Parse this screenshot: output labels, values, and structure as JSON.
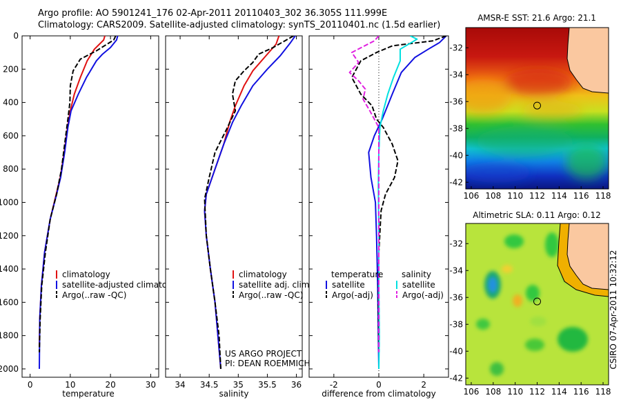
{
  "header": {
    "line1": "Argo profile: AO 5901241_176 02-Apr-2011 20110403_302 36.305S 111.999E",
    "line2": "Climatology: CARS2009. Satellite-adjusted climatology: synTS_20110401.nc (1.5d earlier)"
  },
  "chart_data": [
    {
      "type": "line",
      "panel": "temperature-profile",
      "xlabel": "temperature",
      "ylabel": "",
      "xlim": [
        -2,
        32
      ],
      "ylim": [
        2050,
        0
      ],
      "xticks": [
        "0",
        "10",
        "20",
        "30"
      ],
      "yticks": [
        "0",
        "200",
        "400",
        "600",
        "800",
        "1000",
        "1200",
        "1400",
        "1600",
        "1800",
        "2000"
      ],
      "legend_placement": "lower-right",
      "legend": [
        "climatology",
        "satellite-adjusted climatology",
        "Argo(..raw -QC)"
      ],
      "series": [
        {
          "name": "climatology",
          "color": "#e01010",
          "dash": "solid",
          "points": [
            [
              18.6,
              0
            ],
            [
              18.3,
              25
            ],
            [
              16,
              80
            ],
            [
              14.2,
              150
            ],
            [
              12.5,
              250
            ],
            [
              11,
              350
            ],
            [
              10,
              450
            ],
            [
              9.3,
              550
            ],
            [
              8.5,
              700
            ],
            [
              7.5,
              850
            ],
            [
              6.5,
              950
            ],
            [
              5,
              1100
            ],
            [
              3.6,
              1300
            ],
            [
              2.8,
              1500
            ],
            [
              2.4,
              1700
            ],
            [
              2.3,
              1870
            ]
          ]
        },
        {
          "name": "satellite-adjusted climatology",
          "color": "#1010e0",
          "dash": "solid",
          "points": [
            [
              21.8,
              0
            ],
            [
              21.5,
              25
            ],
            [
              20,
              70
            ],
            [
              18,
              110
            ],
            [
              16.5,
              150
            ],
            [
              14,
              250
            ],
            [
              12,
              350
            ],
            [
              10.2,
              450
            ],
            [
              9.4,
              550
            ],
            [
              8.6,
              700
            ],
            [
              7.6,
              850
            ],
            [
              6.6,
              950
            ],
            [
              5,
              1100
            ],
            [
              3.6,
              1300
            ],
            [
              2.8,
              1500
            ],
            [
              2.4,
              1700
            ],
            [
              2.3,
              2000
            ]
          ]
        },
        {
          "name": "Argo(..raw -QC)",
          "color": "#000000",
          "dash": "dashed",
          "points": [
            [
              21.3,
              0
            ],
            [
              20.8,
              25
            ],
            [
              16.5,
              90
            ],
            [
              12.5,
              140
            ],
            [
              10.7,
              210
            ],
            [
              10,
              300
            ],
            [
              9.9,
              400
            ],
            [
              9.4,
              500
            ],
            [
              8.6,
              650
            ],
            [
              7.8,
              800
            ],
            [
              6.6,
              950
            ],
            [
              5,
              1100
            ],
            [
              3.8,
              1300
            ],
            [
              2.9,
              1500
            ],
            [
              2.5,
              1700
            ],
            [
              2.3,
              1900
            ]
          ]
        }
      ]
    },
    {
      "type": "line",
      "panel": "salinity-profile",
      "xlabel": "salinity",
      "ylabel": "",
      "xlim": [
        33.75,
        36.1
      ],
      "ylim": [
        2050,
        0
      ],
      "xticks": [
        "34",
        "34.5",
        "35",
        "35.5",
        "36"
      ],
      "legend_placement": "lower-right",
      "legend": [
        "climatology",
        "satellite adj. clim.",
        "Argo(..raw -QC)"
      ],
      "annotation": [
        "US ARGO PROJECT",
        "PI: DEAN ROEMMICH"
      ],
      "series": [
        {
          "name": "climatology",
          "color": "#e01010",
          "dash": "solid",
          "points": [
            [
              35.7,
              0
            ],
            [
              35.65,
              50
            ],
            [
              35.45,
              130
            ],
            [
              35.25,
              210
            ],
            [
              35.1,
              300
            ],
            [
              34.95,
              420
            ],
            [
              34.85,
              520
            ],
            [
              34.75,
              650
            ],
            [
              34.6,
              800
            ],
            [
              34.45,
              950
            ],
            [
              34.42,
              1050
            ],
            [
              34.45,
              1200
            ],
            [
              34.52,
              1400
            ],
            [
              34.6,
              1600
            ],
            [
              34.65,
              1800
            ],
            [
              34.7,
              2000
            ]
          ]
        },
        {
          "name": "satellite adj. clim.",
          "color": "#1010e0",
          "dash": "solid",
          "points": [
            [
              35.98,
              0
            ],
            [
              35.9,
              40
            ],
            [
              35.72,
              120
            ],
            [
              35.5,
              200
            ],
            [
              35.25,
              300
            ],
            [
              35.05,
              420
            ],
            [
              34.9,
              520
            ],
            [
              34.75,
              650
            ],
            [
              34.6,
              800
            ],
            [
              34.45,
              950
            ],
            [
              34.42,
              1050
            ],
            [
              34.45,
              1200
            ],
            [
              34.52,
              1400
            ],
            [
              34.6,
              1600
            ],
            [
              34.65,
              1800
            ],
            [
              34.7,
              2000
            ]
          ]
        },
        {
          "name": "Argo(..raw -QC)",
          "color": "#000000",
          "dash": "dashed",
          "points": [
            [
              35.95,
              0
            ],
            [
              35.6,
              70
            ],
            [
              35.35,
              110
            ],
            [
              35.25,
              160
            ],
            [
              35.1,
              210
            ],
            [
              34.95,
              270
            ],
            [
              34.9,
              350
            ],
            [
              34.95,
              450
            ],
            [
              34.8,
              560
            ],
            [
              34.6,
              700
            ],
            [
              34.5,
              850
            ],
            [
              34.42,
              980
            ],
            [
              34.45,
              1200
            ],
            [
              34.52,
              1400
            ],
            [
              34.6,
              1600
            ],
            [
              34.67,
              1800
            ],
            [
              34.7,
              2000
            ]
          ]
        }
      ]
    },
    {
      "type": "line",
      "panel": "difference-profile",
      "xlabel": "difference from climatology",
      "ylabel": "",
      "xlim": [
        -3.1,
        3.1
      ],
      "ylim": [
        2050,
        0
      ],
      "xticks": [
        "-2",
        "0",
        "2"
      ],
      "legend_placement": "lower-center",
      "legend": [
        "temperature",
        "satellite",
        "Argo(-adj)",
        "salinity",
        "satellite",
        "Argo(-adj)"
      ],
      "series": [
        {
          "name": "temperature satellite",
          "color": "#1010e0",
          "dash": "solid",
          "points": [
            [
              3.0,
              0
            ],
            [
              2.7,
              40
            ],
            [
              2.2,
              80
            ],
            [
              1.6,
              130
            ],
            [
              1,
              220
            ],
            [
              0.6,
              350
            ],
            [
              0.15,
              500
            ],
            [
              -0.2,
              600
            ],
            [
              -0.45,
              700
            ],
            [
              -0.35,
              850
            ],
            [
              -0.15,
              1000
            ],
            [
              -0.1,
              1200
            ],
            [
              -0.05,
              1500
            ],
            [
              -0.02,
              1800
            ],
            [
              0,
              2000
            ]
          ]
        },
        {
          "name": "temperature Argo(-adj)",
          "color": "#000000",
          "dash": "dashed",
          "points": [
            [
              3.0,
              0
            ],
            [
              2.4,
              30
            ],
            [
              0.6,
              60
            ],
            [
              -0.1,
              100
            ],
            [
              -0.8,
              150
            ],
            [
              -1.2,
              250
            ],
            [
              -0.8,
              350
            ],
            [
              -0.3,
              420
            ],
            [
              -0.1,
              500
            ],
            [
              0.2,
              550
            ],
            [
              0.6,
              650
            ],
            [
              0.85,
              750
            ],
            [
              0.7,
              850
            ],
            [
              0.3,
              950
            ],
            [
              0.1,
              1050
            ],
            [
              0,
              1300
            ],
            [
              -0.02,
              1600
            ],
            [
              0,
              1900
            ]
          ]
        },
        {
          "name": "salinity satellite",
          "color": "#00e0e0",
          "dash": "solid",
          "points": [
            [
              1.4,
              0
            ],
            [
              1.7,
              20
            ],
            [
              0.95,
              80
            ],
            [
              0.95,
              150
            ],
            [
              0.65,
              250
            ],
            [
              0.4,
              350
            ],
            [
              0.2,
              450
            ],
            [
              0.05,
              550
            ],
            [
              0,
              700
            ],
            [
              -0.02,
              900
            ],
            [
              0,
              1200
            ],
            [
              0,
              1500
            ],
            [
              0.02,
              1800
            ],
            [
              0,
              2000
            ]
          ]
        },
        {
          "name": "salinity Argo(-adj)",
          "color": "#e020e0",
          "dash": "dashed",
          "points": [
            [
              0,
              0
            ],
            [
              -0.2,
              30
            ],
            [
              -1.2,
              100
            ],
            [
              -0.9,
              160
            ],
            [
              -1.3,
              220
            ],
            [
              -0.9,
              270
            ],
            [
              -0.6,
              320
            ],
            [
              -0.7,
              380
            ],
            [
              -0.4,
              450
            ],
            [
              -0.2,
              500
            ],
            [
              0,
              550
            ],
            [
              0,
              1000
            ],
            [
              0,
              1500
            ],
            [
              0,
              1900
            ]
          ]
        }
      ]
    },
    {
      "type": "heatmap",
      "panel": "sst-map",
      "title": "AMSR-E SST: 21.6 Argo: 21.1",
      "xlim": [
        105.5,
        118.5
      ],
      "ylim": [
        -42.5,
        -30.5
      ],
      "xticks": [
        "106",
        "108",
        "110",
        "112",
        "114",
        "116",
        "118"
      ],
      "yticks": [
        "-32",
        "-34",
        "-36",
        "-38",
        "-40",
        "-42"
      ],
      "marker": {
        "lon": 112.0,
        "lat": -36.3
      },
      "colors": {
        "warm": "#a80a08",
        "land": "#fac8a0"
      }
    },
    {
      "type": "heatmap",
      "panel": "sla-map",
      "title": "Altimetric SLA: 0.11 Argo: 0.12",
      "xlim": [
        105.5,
        118.5
      ],
      "ylim": [
        -42.5,
        -30.5
      ],
      "xticks": [
        "106",
        "108",
        "110",
        "112",
        "114",
        "116",
        "118"
      ],
      "yticks": [
        "-32",
        "-34",
        "-36",
        "-38",
        "-40",
        "-42"
      ],
      "marker": {
        "lon": 112.0,
        "lat": -36.3
      },
      "colors": {
        "background": "#b8e43c",
        "land": "#fac8a0"
      }
    }
  ],
  "credit": "CSIRO 07-Apr-2011 10:32:12"
}
